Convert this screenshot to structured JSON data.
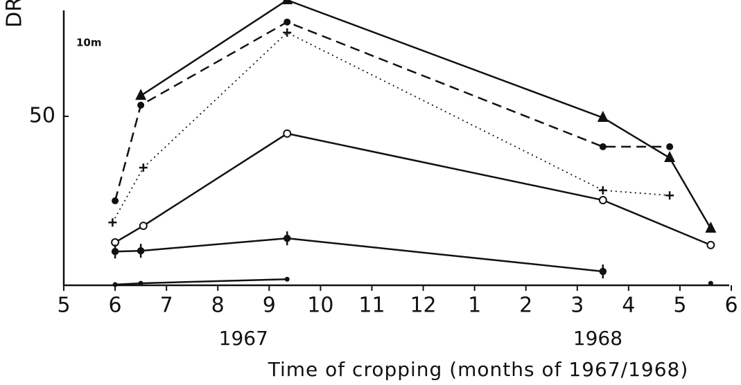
{
  "chart_data": {
    "type": "line",
    "y_label": "DR",
    "annotation": "10m",
    "x_label": "Time of cropping (months of 1967/1968)",
    "xlim": [
      5,
      18
    ],
    "xticks": [
      5,
      6,
      7,
      8,
      9,
      10,
      11,
      12,
      {
        "value": 13,
        "label": "1"
      },
      {
        "value": 14,
        "label": "2"
      },
      {
        "value": 15,
        "label": "3"
      },
      {
        "value": 16,
        "label": "4"
      },
      {
        "value": 17,
        "label": "5"
      },
      {
        "value": 18,
        "label": "6"
      }
    ],
    "year_labels": [
      {
        "value": 8.5,
        "label": "1967"
      },
      {
        "value": 15.4,
        "label": "1968"
      }
    ],
    "ylim": [
      0,
      85
    ],
    "yticks": [
      50
    ],
    "series": [
      {
        "marker": "triangle",
        "dash": "solid",
        "color": "#111",
        "x": [
          6.5,
          9.35,
          15.5,
          16.8,
          17.6
        ],
        "values": [
          56.1,
          84.4,
          49.6,
          37.7,
          16.8
        ]
      },
      {
        "marker": "dot",
        "dash": "dashed",
        "color": "#111",
        "x": [
          6.0,
          6.5,
          9.35,
          15.5,
          16.8
        ],
        "values": [
          25,
          53.3,
          77.9,
          41,
          41
        ]
      },
      {
        "marker": "plus",
        "dash": "dotted",
        "color": "#111",
        "x": [
          5.95,
          6.55,
          9.35,
          15.5,
          16.8
        ],
        "values": [
          18.6,
          34.8,
          74.8,
          28.1,
          26.6
        ]
      },
      {
        "marker": "circle",
        "dash": "solid",
        "color": "#111",
        "x": [
          6.0,
          6.55,
          9.35,
          15.5,
          17.6
        ],
        "values": [
          12.7,
          17.6,
          44.9,
          25.2,
          11.9
        ]
      },
      {
        "marker": "bar-dot",
        "dash": "solid",
        "color": "#111",
        "x": [
          6.0,
          6.5,
          9.35,
          15.5
        ],
        "values": [
          10,
          10.2,
          13.9,
          4.1
        ]
      },
      {
        "marker": "small",
        "dash": "solid",
        "color": "#111",
        "x": [
          6.0,
          6.5,
          9.35,
          15.5,
          17.6
        ],
        "values": [
          0.2,
          0.6,
          1.8,
          null,
          0.6
        ]
      }
    ]
  }
}
